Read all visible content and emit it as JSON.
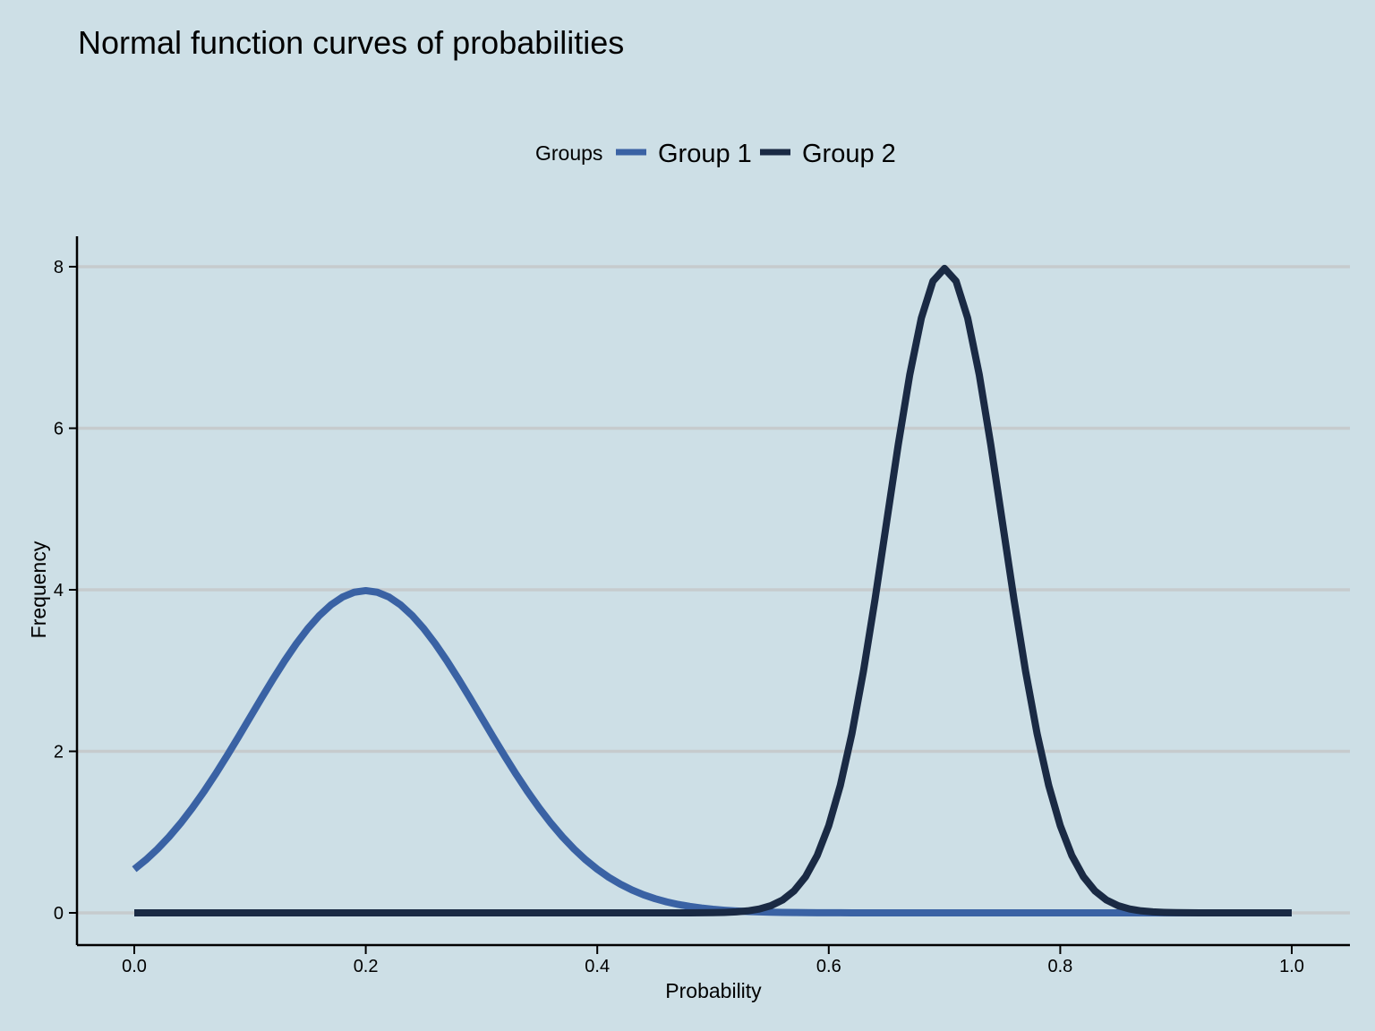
{
  "chart_data": {
    "type": "line",
    "title": "Normal function curves of probabilities",
    "xlabel": "Probability",
    "ylabel": "Frequency",
    "xlim": [
      -0.05,
      1.05
    ],
    "ylim": [
      -0.4,
      8.4
    ],
    "x_ticks": [
      0.0,
      0.2,
      0.4,
      0.6,
      0.8,
      1.0
    ],
    "x_tick_labels": [
      "0.0",
      "0.2",
      "0.4",
      "0.6",
      "0.8",
      "1.0"
    ],
    "y_ticks": [
      0,
      2,
      4,
      6,
      8
    ],
    "y_tick_labels": [
      "0",
      "2",
      "4",
      "6",
      "8"
    ],
    "grid": "horizontal",
    "legend": {
      "title": "Groups",
      "position": "top"
    },
    "x": [
      0.0,
      0.05,
      0.1,
      0.15,
      0.2,
      0.25,
      0.3,
      0.35,
      0.4,
      0.45,
      0.5,
      0.55,
      0.6,
      0.65,
      0.675,
      0.7,
      0.725,
      0.75,
      0.8,
      0.85,
      0.9,
      0.95,
      1.0
    ],
    "series": [
      {
        "name": "Group 1",
        "color": "#3a62a4",
        "mean": 0.2,
        "sd": 0.1,
        "values": [
          0.54,
          1.3,
          2.42,
          3.52,
          3.99,
          3.52,
          2.42,
          1.3,
          0.54,
          0.18,
          0.04,
          0.01,
          0.0,
          0.0,
          0.0,
          0.0,
          0.0,
          0.0,
          0.0,
          0.0,
          0.0,
          0.0,
          0.0
        ]
      },
      {
        "name": "Group 2",
        "color": "#1a2a44",
        "mean": 0.7,
        "sd": 0.05,
        "values": [
          0.0,
          0.0,
          0.0,
          0.0,
          0.0,
          0.0,
          0.0,
          0.0,
          0.0,
          0.0,
          0.0,
          0.04,
          1.08,
          4.84,
          7.04,
          7.98,
          7.04,
          4.84,
          1.08,
          0.04,
          0.0,
          0.0,
          0.0
        ]
      }
    ]
  }
}
